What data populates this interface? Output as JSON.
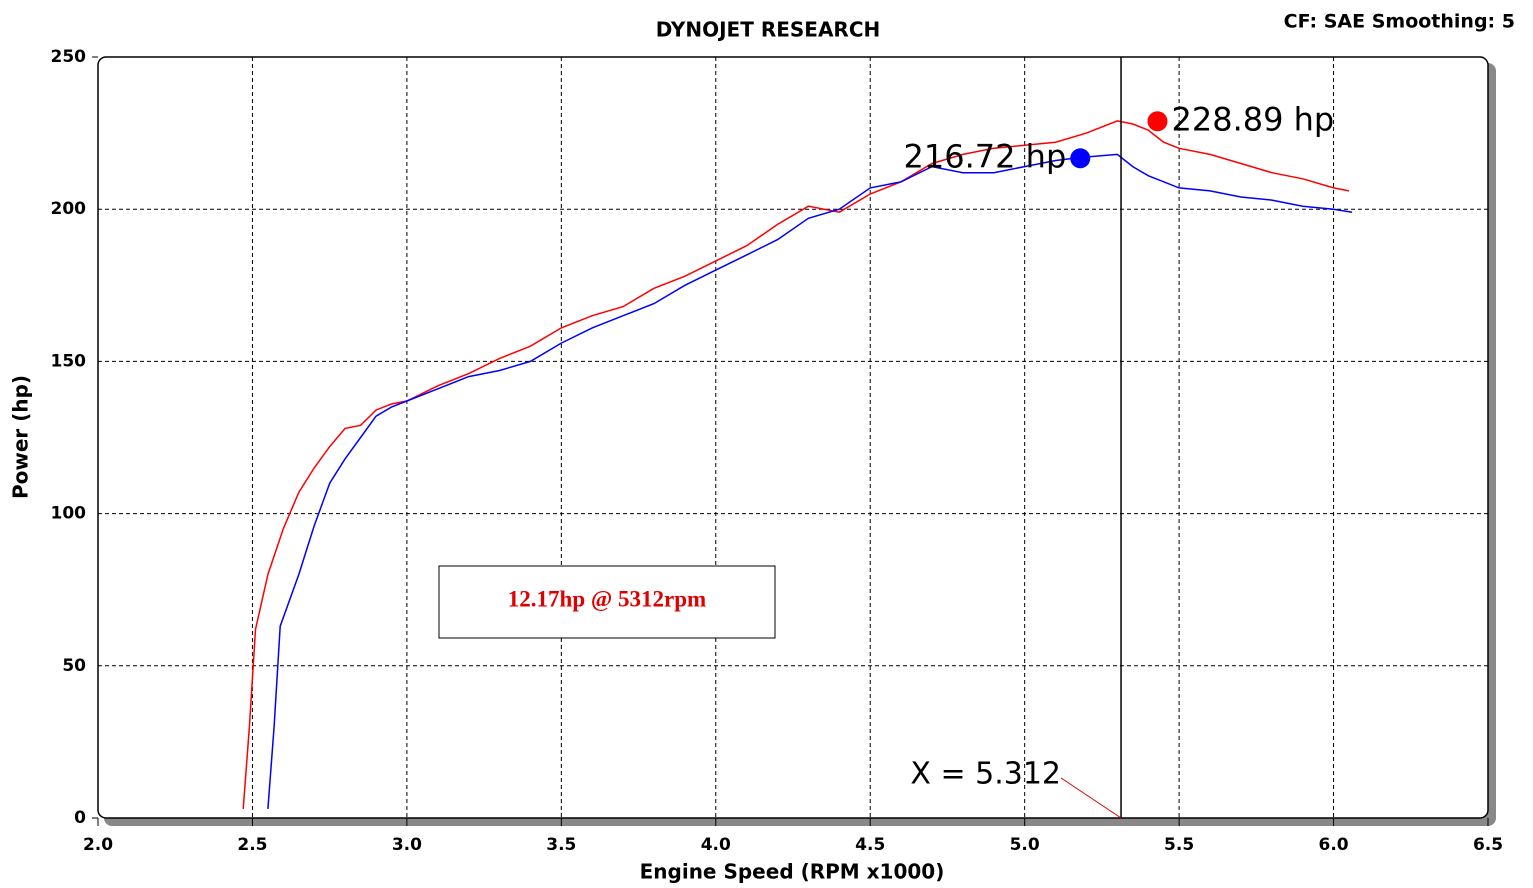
{
  "chart_data": {
    "type": "line",
    "title": "DYNOJET RESEARCH",
    "subtitle": "CF: SAE  Smoothing: 5",
    "x_label": "Engine Speed (RPM x1000)",
    "y_label": "Power (hp)",
    "xlim": [
      2.0,
      6.5
    ],
    "ylim": [
      0,
      250
    ],
    "xticks": [
      {
        "value": 2,
        "label": "2.0"
      },
      2.5,
      {
        "value": 3,
        "label": "3.0"
      },
      3.5,
      {
        "value": 4,
        "label": "4.0"
      },
      4.5,
      {
        "value": 5,
        "label": "5.0"
      },
      5.5,
      {
        "value": 6,
        "label": "6.0"
      },
      6.5
    ],
    "yticks": [
      0,
      50,
      100,
      150,
      200,
      250
    ],
    "grid": true,
    "series": [
      {
        "color": "#ff0000",
        "x": [
          2.47,
          2.49,
          2.51,
          2.55,
          2.6,
          2.65,
          2.7,
          2.75,
          2.8,
          2.85,
          2.9,
          2.95,
          3.0,
          3.1,
          3.2,
          3.3,
          3.4,
          3.5,
          3.6,
          3.7,
          3.8,
          3.9,
          4.0,
          4.1,
          4.2,
          4.3,
          4.4,
          4.5,
          4.6,
          4.7,
          4.8,
          4.9,
          5.0,
          5.1,
          5.2,
          5.3,
          5.35,
          5.4,
          5.45,
          5.5,
          5.6,
          5.7,
          5.8,
          5.9,
          6.0,
          6.05
        ],
        "values": [
          3,
          30,
          62,
          80,
          95,
          107,
          115,
          122,
          128,
          129,
          134,
          136,
          137,
          142,
          146,
          151,
          155,
          161,
          165,
          168,
          174,
          178,
          183,
          188,
          195,
          201,
          199,
          205,
          209,
          215,
          218,
          220,
          221,
          222,
          225,
          229,
          228,
          226,
          222,
          220,
          218,
          215,
          212,
          210,
          207,
          206
        ]
      },
      {
        "color": "#0000ff",
        "x": [
          2.55,
          2.57,
          2.59,
          2.65,
          2.7,
          2.75,
          2.8,
          2.85,
          2.9,
          2.95,
          3.0,
          3.1,
          3.2,
          3.3,
          3.4,
          3.5,
          3.6,
          3.7,
          3.8,
          3.9,
          4.0,
          4.1,
          4.2,
          4.3,
          4.4,
          4.5,
          4.6,
          4.7,
          4.8,
          4.9,
          5.0,
          5.1,
          5.18,
          5.3,
          5.35,
          5.4,
          5.5,
          5.6,
          5.7,
          5.8,
          5.9,
          6.0,
          6.06
        ],
        "values": [
          3,
          30,
          63,
          80,
          96,
          110,
          118,
          125,
          132,
          135,
          137,
          141,
          145,
          147,
          150,
          156,
          161,
          165,
          169,
          175,
          180,
          185,
          190,
          197,
          200,
          207,
          209,
          214,
          212,
          212,
          214,
          216,
          217,
          218,
          214,
          211,
          207,
          206,
          204,
          203,
          201,
          200,
          199
        ]
      }
    ],
    "peaks": [
      {
        "x": 5.43,
        "value": 228.89,
        "label": "228.89 hp",
        "color": "#ff0000"
      },
      {
        "x": 5.18,
        "value": 216.72,
        "label": "216.72 hp",
        "color": "#0000ff"
      }
    ],
    "cursor": {
      "x": 5.312,
      "label": "X = 5.312"
    },
    "annotation": "12.17hp @ 5312rpm"
  }
}
